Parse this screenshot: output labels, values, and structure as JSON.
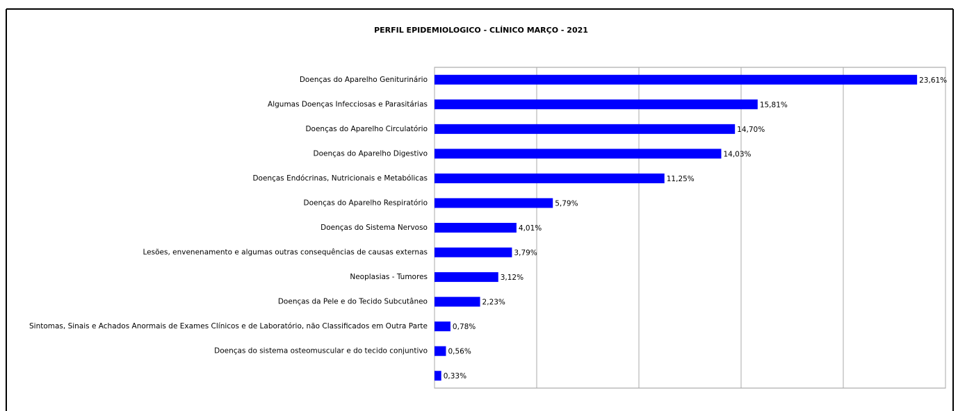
{
  "chart_data": {
    "type": "bar",
    "orientation": "horizontal",
    "title": "PERFIL EPIDEMIOLOGICO - CLÍNICO MARÇO - 2021",
    "categories": [
      "Doenças do Aparelho Geniturinário",
      "Algumas Doenças Infecciosas e Parasitárias",
      "Doenças do Aparelho Circulatório",
      "Doenças do Aparelho Digestivo",
      "Doenças Endócrinas, Nutricionais e Metabólicas",
      "Doenças do Aparelho Respiratório",
      "Doenças do Sistema Nervoso",
      "Lesões, envenenamento e algumas outras consequências de causas externas",
      "Neoplasias - Tumores",
      "Doenças da Pele e do Tecido Subcutâneo",
      "Sintomas, Sinais e Achados Anormais de Exames Clínicos e de Laboratório, não Classificados em Outra Parte",
      "Doenças do sistema osteomuscular e do tecido conjuntivo",
      null
    ],
    "values": [
      23.61,
      15.81,
      14.7,
      14.03,
      11.25,
      5.79,
      4.01,
      3.79,
      3.12,
      2.23,
      0.78,
      0.56,
      0.33
    ],
    "value_labels": [
      "23,61%",
      "15,81%",
      "14,70%",
      "14,03%",
      "11,25%",
      "5,79%",
      "4,01%",
      "3,79%",
      "3,12%",
      "2,23%",
      "0,78%",
      "0,56%",
      "0,33%"
    ],
    "color": "#0000ff",
    "xlim": [
      0,
      25
    ],
    "xticks": [
      0,
      5,
      10,
      15,
      20,
      25
    ],
    "grid": true
  }
}
